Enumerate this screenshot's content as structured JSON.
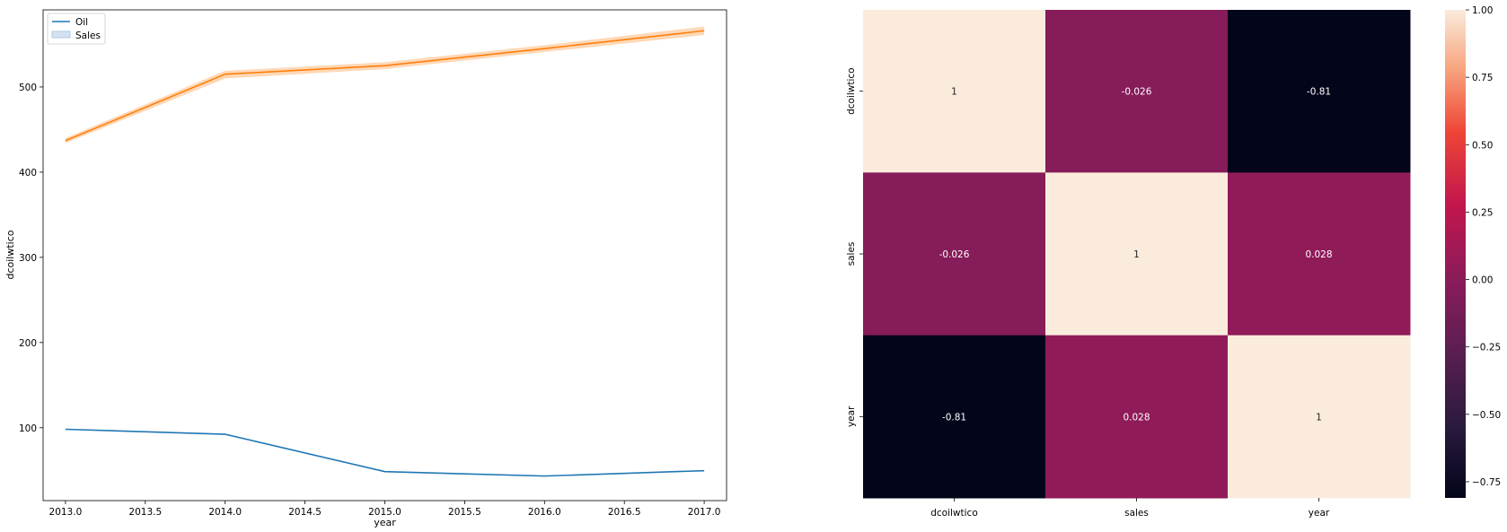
{
  "chart_data": [
    {
      "type": "line",
      "xlabel": "year",
      "ylabel": "dcoilwtico",
      "xlim": [
        2012.86,
        2017.14
      ],
      "ylim": [
        14.47,
        590.5
      ],
      "xticks": [
        2013.0,
        2013.5,
        2014.0,
        2014.5,
        2015.0,
        2015.5,
        2016.0,
        2016.5,
        2017.0
      ],
      "xtick_labels": [
        "2013.0",
        "2013.5",
        "2014.0",
        "2014.5",
        "2015.0",
        "2015.5",
        "2016.0",
        "2016.5",
        "2017.0"
      ],
      "yticks": [
        100,
        200,
        300,
        400,
        500
      ],
      "ytick_labels": [
        "100",
        "200",
        "300",
        "400",
        "500"
      ],
      "legend_position": "top-left",
      "legend": [
        "Oil",
        "Sales"
      ],
      "x": [
        2013,
        2014,
        2015,
        2016,
        2017
      ],
      "series": [
        {
          "name": "Oil",
          "color": "#1f77b4",
          "values": [
            98.2,
            92.3,
            48.5,
            43.3,
            49.6
          ]
        },
        {
          "name": "Sales",
          "color": "#ff7f0e",
          "values": [
            437,
            515,
            525,
            545,
            566
          ],
          "ci_lower": [
            434,
            510,
            521,
            541,
            561
          ],
          "ci_upper": [
            440,
            519,
            529,
            549,
            571
          ]
        }
      ]
    },
    {
      "type": "heatmap",
      "rows": [
        "dcoilwtico",
        "sales",
        "year"
      ],
      "cols": [
        "dcoilwtico",
        "sales",
        "year"
      ],
      "values": [
        [
          1,
          -0.026,
          -0.81
        ],
        [
          -0.026,
          1,
          0.028
        ],
        [
          -0.81,
          0.028,
          1
        ]
      ],
      "annotations": [
        [
          "1",
          "-0.026",
          "-0.81"
        ],
        [
          "-0.026",
          "1",
          "0.028"
        ],
        [
          "-0.81",
          "0.028",
          "1"
        ]
      ],
      "colormap": "rocket",
      "vmin": -0.81,
      "vmax": 1,
      "colorbar_ticks": [
        1.0,
        0.75,
        0.5,
        0.25,
        0.0,
        -0.25,
        -0.5,
        -0.75
      ],
      "colorbar_tick_labels": [
        "1.00",
        "0.75",
        "0.50",
        "0.25",
        "0.00",
        "−0.25",
        "−0.50",
        "−0.75"
      ]
    }
  ]
}
